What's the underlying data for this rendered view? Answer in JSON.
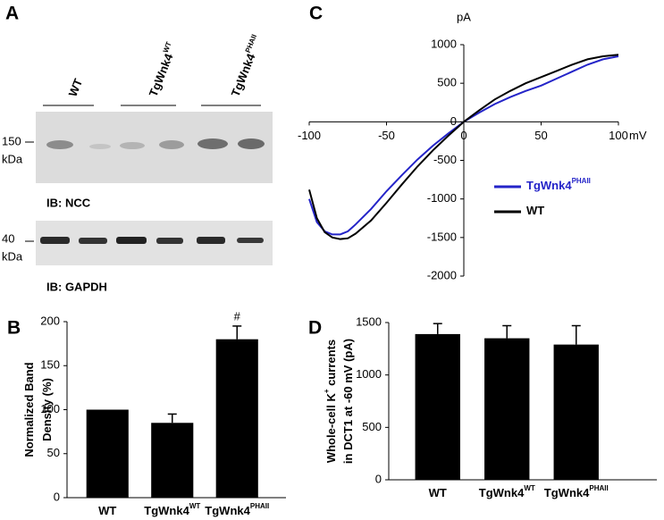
{
  "blot": {
    "label": "A",
    "lanes": [
      {
        "name": "WT",
        "sup": null
      },
      {
        "name": "TgWnk4",
        "sup": "WT"
      },
      {
        "name": "TgWnk4",
        "sup": "PHAII"
      }
    ],
    "markers": [
      {
        "size": "150",
        "unit": "kDa"
      },
      {
        "size": "40",
        "unit": "kDa"
      }
    ],
    "antibodies": [
      "IB: NCC",
      "IB: GAPDH"
    ]
  },
  "chart_data": [
    {
      "type": "line",
      "label": "C",
      "xlabel": "mV",
      "ylabel": "pA",
      "x": [
        -100,
        -95,
        -90,
        -85,
        -80,
        -75,
        -70,
        -60,
        -50,
        -40,
        -30,
        -20,
        -10,
        0,
        10,
        20,
        30,
        40,
        50,
        60,
        70,
        80,
        90,
        100
      ],
      "xlim": [
        -100,
        100
      ],
      "xticks": [
        -100,
        -50,
        0,
        50,
        100
      ],
      "ylim": [
        -2000,
        1000
      ],
      "yticks": [
        -2000,
        -1500,
        -1000,
        -500,
        0,
        500,
        1000
      ],
      "series": [
        {
          "name": "TgWnk4",
          "superscript": "PHAII",
          "color": "#2424c8",
          "values": [
            -1000,
            -1300,
            -1420,
            -1460,
            -1460,
            -1420,
            -1330,
            -1130,
            -900,
            -690,
            -490,
            -310,
            -150,
            0,
            120,
            230,
            320,
            400,
            470,
            560,
            650,
            740,
            810,
            850
          ]
        },
        {
          "name": "WT",
          "superscript": null,
          "color": "#000000",
          "values": [
            -880,
            -1250,
            -1430,
            -1500,
            -1520,
            -1510,
            -1450,
            -1280,
            -1050,
            -810,
            -580,
            -370,
            -180,
            0,
            150,
            290,
            400,
            500,
            580,
            660,
            740,
            810,
            850,
            870
          ]
        }
      ]
    },
    {
      "type": "bar",
      "label": "B",
      "ylabel": [
        [
          "Normalized Band"
        ],
        [
          "Density (%)"
        ]
      ],
      "categories": [
        "WT",
        "TgWnk4",
        "TgWnk4"
      ],
      "superscripts": [
        null,
        "WT",
        "PHAII"
      ],
      "values": [
        100,
        85,
        180
      ],
      "errors": [
        null,
        10,
        15
      ],
      "annotations": [
        null,
        null,
        "#"
      ],
      "color": "#000000",
      "ylim": [
        0,
        200
      ],
      "yticks": [
        0,
        50,
        100,
        150,
        200
      ]
    },
    {
      "type": "bar",
      "label": "D",
      "ylabel": [
        [
          "Whole-cell K",
          "+",
          " currents"
        ],
        [
          "in DCT1 at -60 mV (pA)"
        ]
      ],
      "categories": [
        "WT",
        "TgWnk4",
        "TgWnk4"
      ],
      "superscripts": [
        null,
        "WT",
        "PHAII"
      ],
      "values": [
        1390,
        1350,
        1290
      ],
      "errors": [
        100,
        120,
        180
      ],
      "color": "#000000",
      "ylim": [
        0,
        1500
      ],
      "yticks": [
        0,
        500,
        1000,
        1500
      ]
    }
  ]
}
